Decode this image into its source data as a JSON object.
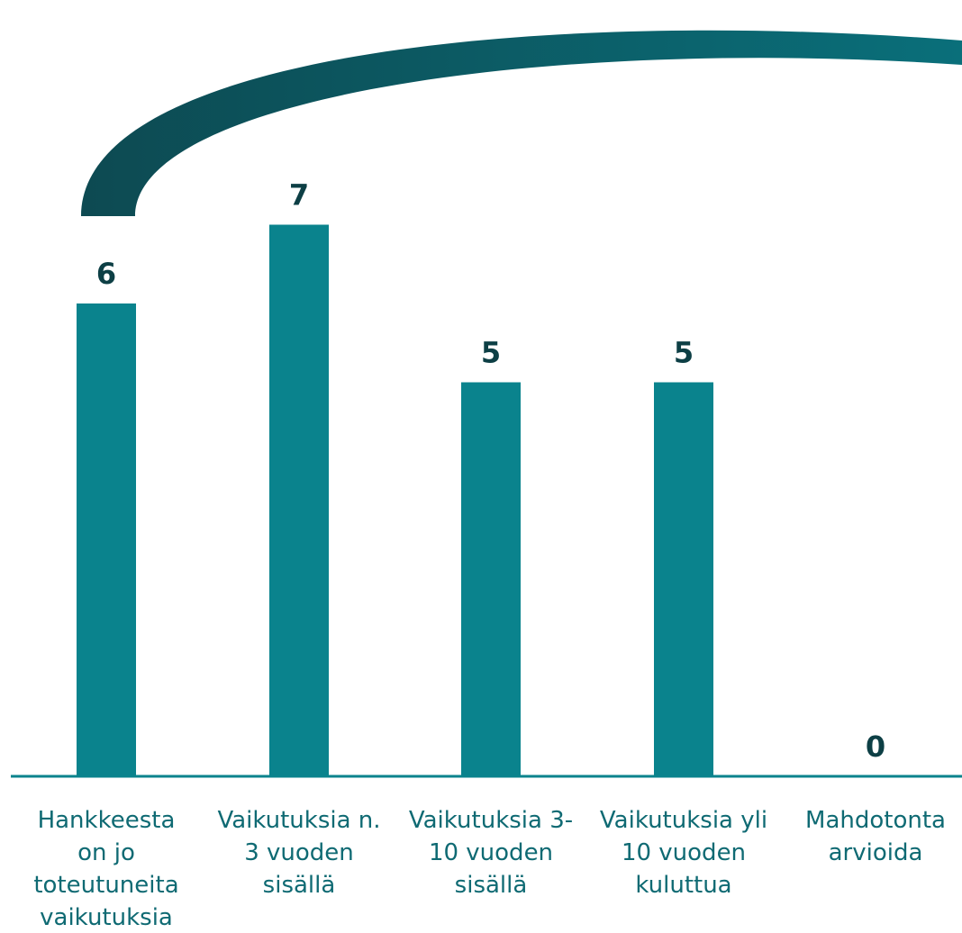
{
  "colors": {
    "bar": "#0a838d",
    "value_label": "#0d3f45",
    "axis": "#0a838d",
    "category_label": "#0f6a73",
    "arc_start": "#0d4a52",
    "arc_end": "#0a6f7a"
  },
  "chart_data": {
    "type": "bar",
    "categories": [
      [
        "Hankkeesta",
        "on jo",
        "toteutuneita",
        "vaikutuksia"
      ],
      [
        "Vaikutuksia n.",
        "3 vuoden",
        "sisällä"
      ],
      [
        "Vaikutuksia 3-",
        "10 vuoden",
        "sisällä"
      ],
      [
        "Vaikutuksia yli",
        "10 vuoden",
        "kuluttua"
      ],
      [
        "Mahdotonta",
        "arvioida"
      ]
    ],
    "values": [
      6,
      7,
      5,
      5,
      0
    ],
    "data_labels": [
      "6",
      "7",
      "5",
      "5",
      "0"
    ],
    "ylim": [
      0,
      7
    ],
    "grid": false,
    "legend": "none"
  }
}
